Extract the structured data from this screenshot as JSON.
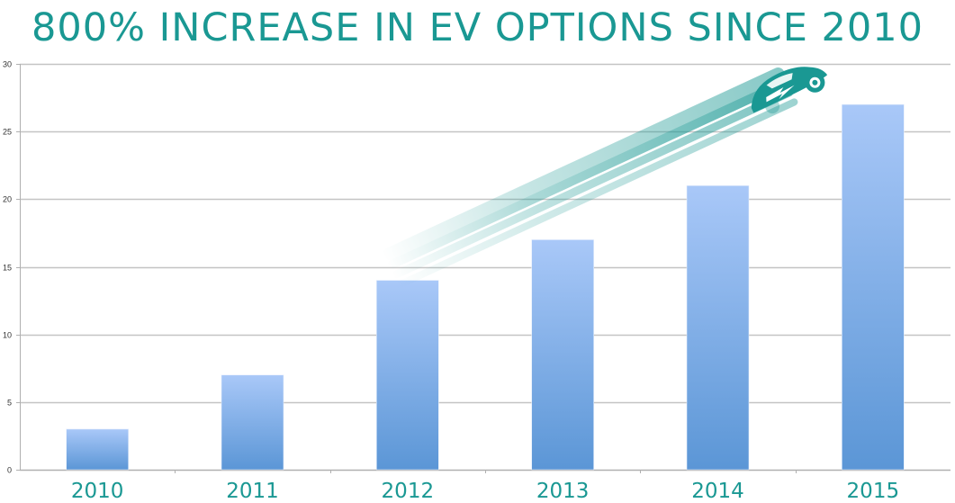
{
  "title": "800% INCREASE IN EV OPTIONS SINCE 2010",
  "colors": {
    "title": "#1a9893",
    "bar_top": "#a9c8f8",
    "bar_bottom": "#5b96d6",
    "grid": "#c4c4c4",
    "axis": "#b0b0b0",
    "car": "#1a9893"
  },
  "decoration": {
    "icon": "speeding-electric-car-icon",
    "description": "teal electric car with lightning bolt and motion streaks"
  },
  "chart_data": {
    "type": "bar",
    "title": "800% INCREASE IN EV OPTIONS SINCE 2010",
    "xlabel": "",
    "ylabel": "",
    "categories": [
      "2010",
      "2011",
      "2012",
      "2013",
      "2014",
      "2015"
    ],
    "values": [
      3,
      7,
      14,
      17,
      21,
      27
    ],
    "ylim": [
      0,
      30
    ],
    "yticks": [
      0,
      5,
      10,
      15,
      20,
      25,
      30
    ],
    "grid": true,
    "legend": "none"
  }
}
